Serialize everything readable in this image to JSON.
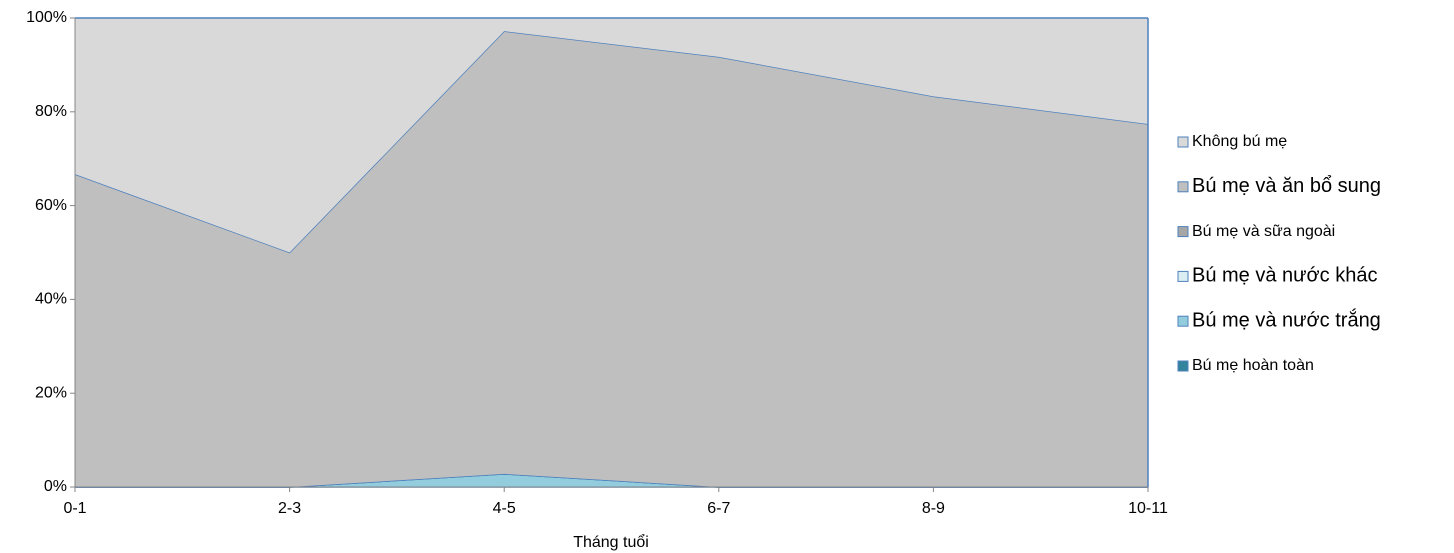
{
  "chart_data": {
    "type": "stacked_area",
    "x_label": "Tháng tuổi",
    "categories": [
      "0-1",
      "2-3",
      "4-5",
      "6-7",
      "8-9",
      "10-11"
    ],
    "series": [
      {
        "name": "Bú mẹ hoàn toàn",
        "color": "#31849b",
        "values": [
          0,
          0,
          0,
          0,
          0,
          0
        ]
      },
      {
        "name": "Bú mẹ và nước trắng",
        "color": "#93cddd",
        "values": [
          0,
          0,
          2.8,
          0,
          0,
          0
        ]
      },
      {
        "name": "Bú mẹ và nước khác",
        "color": "#dbeef4",
        "values": [
          0,
          0,
          0,
          0,
          0,
          0
        ]
      },
      {
        "name": "Bú mẹ và sữa ngoài",
        "color": "#a6a6a6",
        "values": [
          0,
          0,
          0,
          0,
          0,
          0
        ]
      },
      {
        "name": "Bú mẹ và ăn bổ sung",
        "color": "#bfbfbf",
        "values": [
          66.7,
          50,
          94.4,
          91.7,
          83.3,
          77.4
        ]
      },
      {
        "name": "Không bú mẹ",
        "color": "#d9d9d9",
        "values": [
          33.3,
          50,
          2.8,
          8.3,
          16.7,
          22.6
        ]
      }
    ],
    "ylim": [
      0,
      100
    ],
    "yticks": [
      {
        "value": 0,
        "label": "0%"
      },
      {
        "value": 20,
        "label": "20%"
      },
      {
        "value": 40,
        "label": "40%"
      },
      {
        "value": 60,
        "label": "60%"
      },
      {
        "value": 80,
        "label": "80%"
      },
      {
        "value": 100,
        "label": "100%"
      }
    ],
    "legend": "right"
  }
}
